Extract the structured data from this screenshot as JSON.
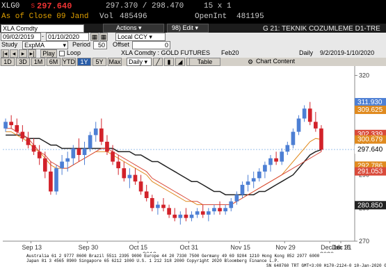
{
  "quote": {
    "ticker": "XLG0",
    "prefix": "s",
    "last": "297.640",
    "range": "297.370 / 298.470",
    "size": "15 x 1",
    "as_of": "As of Close 09 Jand",
    "vol_label": "Vol",
    "vol_value": "485496",
    "oi_label": "OpenInt",
    "oi_value": "481195"
  },
  "toolbar": {
    "security": "XLA Comdty",
    "actions": "Actions",
    "page": "98) Edit",
    "title": "G 21: TEKNIK COZUMLEME D1-TRE"
  },
  "controls": {
    "start_date": "09/02/2019",
    "end_date": "01/10/2020",
    "currency": "Local CCY",
    "study_label": "Study",
    "study_value": "ExpMA",
    "period_label": "Period",
    "period_value": "50",
    "offset_label": "Offset",
    "offset_value": "0",
    "play_label": "Play",
    "loop_label": "Loop",
    "chart_name": "XLA Comdty : GOLD FUTURES",
    "contract": "Feb20",
    "frequency": "Daily",
    "date_range": "9/2/2019-1/10/2020"
  },
  "periods": [
    "1D",
    "3D",
    "1M",
    "6M",
    "YTD",
    "1Y",
    "5Y",
    "Max"
  ],
  "period_active": "1Y",
  "freq_select": "Daily",
  "table_btn": "Table",
  "chart_content_btn": "Chart Content",
  "colors": {
    "up": "#4d7fd4",
    "down": "#d2222a",
    "ema_black": "#222222",
    "ema_orange": "#e08a1e",
    "ema_red": "#d94a3a",
    "ema_pink": "#f0a0a8",
    "boll_lower": "#9a9a9a",
    "dots": "#6aa0e0"
  },
  "chart_data": {
    "type": "line",
    "title": "XLA Comdty : GOLD FUTURES",
    "ylim": [
      270,
      322
    ],
    "yticks": [
      270,
      280,
      290,
      300,
      310,
      320
    ],
    "y_axis_position": "right",
    "x_tick_labels": [
      "Sep 13",
      "Sep 30",
      "Oct 15",
      "Oct 31",
      "Nov 15",
      "Nov 29",
      "Dec 16",
      "Dec 31",
      "Jan 15"
    ],
    "year_labels": [
      "2019",
      "2020"
    ],
    "price_tags": [
      {
        "value": "311.930",
        "color": "#4d7fd4"
      },
      {
        "value": "309.625",
        "color": "#e08a1e"
      },
      {
        "value": "302.339",
        "color": "#d94a3a"
      },
      {
        "value": "300.679",
        "color": "#e08a1e"
      },
      {
        "value": "297.640",
        "color": "#ffffff"
      },
      {
        "value": "292.786",
        "color": "#e08a1e"
      },
      {
        "value": "291.053",
        "color": "#d94a3a"
      },
      {
        "value": "280.850",
        "color": "#222222"
      }
    ],
    "candles": [
      [
        304,
        307,
        303,
        306
      ],
      [
        306,
        308,
        304,
        305
      ],
      [
        305,
        307,
        302,
        303
      ],
      [
        303,
        305,
        300,
        301
      ],
      [
        301,
        303,
        298,
        299
      ],
      [
        299,
        301,
        296,
        297
      ],
      [
        297,
        299,
        293,
        295
      ],
      [
        295,
        297,
        289,
        291
      ],
      [
        291,
        294,
        284,
        285
      ],
      [
        285,
        293,
        284,
        292
      ],
      [
        292,
        296,
        290,
        294
      ],
      [
        294,
        297,
        291,
        295
      ],
      [
        295,
        299,
        293,
        298
      ],
      [
        298,
        301,
        294,
        296
      ],
      [
        296,
        300,
        293,
        298
      ],
      [
        298,
        303,
        297,
        302
      ],
      [
        302,
        306,
        300,
        304
      ],
      [
        304,
        307,
        299,
        300
      ],
      [
        300,
        302,
        296,
        297
      ],
      [
        297,
        299,
        293,
        294
      ],
      [
        294,
        296,
        290,
        292
      ],
      [
        292,
        294,
        288,
        289
      ],
      [
        289,
        292,
        286,
        290
      ],
      [
        290,
        292,
        287,
        288
      ],
      [
        288,
        290,
        284,
        285
      ],
      [
        285,
        287,
        282,
        283
      ],
      [
        283,
        284,
        279,
        280
      ],
      [
        280,
        282,
        278,
        281
      ],
      [
        281,
        283,
        279,
        280
      ],
      [
        280,
        281,
        277,
        278
      ],
      [
        278,
        280,
        276,
        277
      ],
      [
        277,
        279,
        275,
        278
      ],
      [
        278,
        280,
        276,
        277
      ],
      [
        277,
        279,
        276,
        278
      ],
      [
        278,
        280,
        277,
        279
      ],
      [
        279,
        281,
        277,
        278
      ],
      [
        278,
        280,
        276,
        279
      ],
      [
        279,
        281,
        278,
        280
      ],
      [
        280,
        282,
        278,
        279
      ],
      [
        279,
        281,
        278,
        280
      ],
      [
        280,
        283,
        279,
        282
      ],
      [
        282,
        285,
        281,
        284
      ],
      [
        284,
        288,
        283,
        287
      ],
      [
        287,
        290,
        285,
        288
      ],
      [
        288,
        291,
        286,
        289
      ],
      [
        289,
        292,
        288,
        291
      ],
      [
        291,
        294,
        289,
        293
      ],
      [
        293,
        296,
        291,
        295
      ],
      [
        295,
        297,
        293,
        294
      ],
      [
        294,
        298,
        293,
        297
      ],
      [
        297,
        300,
        296,
        299
      ],
      [
        299,
        304,
        298,
        303
      ],
      [
        303,
        308,
        302,
        307
      ],
      [
        307,
        311,
        306,
        310
      ],
      [
        310,
        312,
        305,
        306
      ],
      [
        306,
        309,
        303,
        304
      ],
      [
        304,
        305,
        297,
        297.6
      ]
    ],
    "series": [
      {
        "values": [
          302,
          302,
          302,
          302,
          301,
          301,
          301,
          300,
          299,
          299,
          298,
          298,
          298,
          298,
          298,
          298,
          298,
          298,
          298,
          298,
          297,
          297,
          297,
          296,
          296,
          295,
          294,
          294,
          293,
          292,
          291,
          290,
          289,
          288,
          288,
          287,
          286,
          285,
          285,
          284,
          284,
          284,
          284,
          284,
          284,
          285,
          285,
          286,
          287,
          288,
          289,
          290,
          292,
          294,
          296,
          297,
          297.6
        ]
      },
      {
        "values": [
          303,
          303,
          302,
          301,
          300,
          298,
          297,
          295,
          293,
          292,
          292,
          292,
          293,
          294,
          295,
          296,
          297,
          297,
          297,
          296,
          295,
          294,
          293,
          292,
          291,
          290,
          288,
          287,
          286,
          285,
          284,
          283,
          282,
          282,
          281,
          281,
          281,
          281,
          281,
          281,
          281,
          282,
          283,
          284,
          285,
          286,
          287,
          288,
          289,
          290,
          292,
          294,
          296,
          298,
          300,
          301,
          300.7
        ]
      },
      {
        "values": [
          304,
          304,
          303,
          302,
          301,
          299,
          297,
          296,
          294,
          293,
          292,
          292,
          293,
          294,
          295,
          296,
          297,
          298,
          298,
          297,
          296,
          295,
          294,
          293,
          292,
          291,
          289,
          288,
          287,
          286,
          285,
          284,
          283,
          282,
          282,
          281,
          281,
          281,
          281,
          281,
          281,
          282,
          283,
          284,
          285,
          286,
          287,
          288,
          289,
          290,
          291,
          292,
          293,
          294,
          295,
          296,
          297
        ]
      }
    ]
  }
}
